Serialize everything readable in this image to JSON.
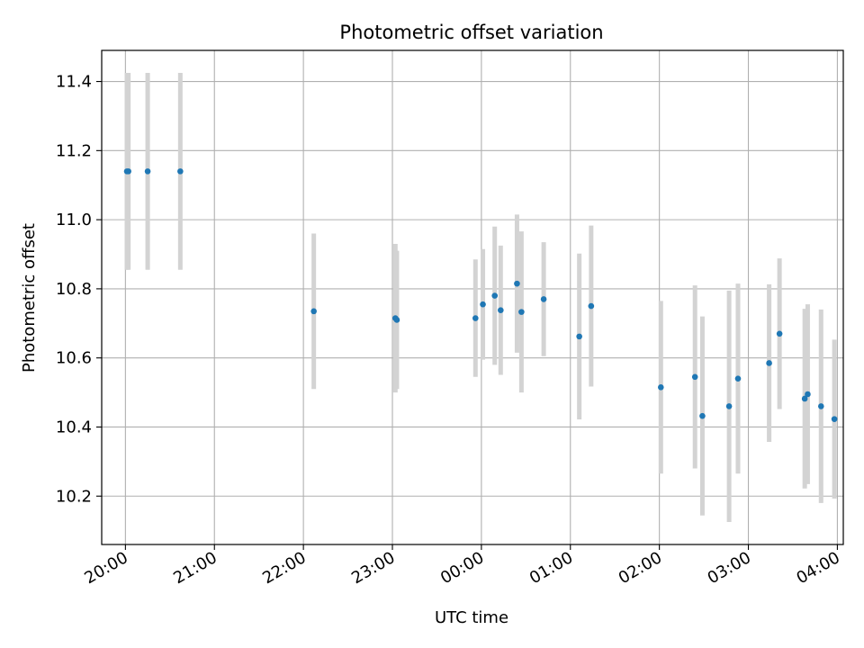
{
  "chart_data": {
    "type": "scatter",
    "title": "Photometric offset variation",
    "xlabel": "UTC time",
    "ylabel": "Photometric offset",
    "x_is_time": true,
    "xlim": [
      "19:44",
      "23:59+4:04"
    ],
    "x_ticks": [
      "20:00",
      "21:00",
      "22:00",
      "23:00",
      "00:00",
      "01:00",
      "02:00",
      "03:00",
      "04:00"
    ],
    "ylim": [
      10.06,
      11.49
    ],
    "y_ticks": [
      10.2,
      10.4,
      10.6,
      10.8,
      11.0,
      11.2,
      11.4
    ],
    "grid": true,
    "colors": {
      "marker": "#1f77b4",
      "errorbar": "#d3d3d3",
      "grid": "#b0b0b0"
    },
    "series": [
      {
        "points": [
          {
            "time": "20:01",
            "y": 11.14,
            "yerr": 0.285
          },
          {
            "time": "20:02",
            "y": 11.14,
            "yerr": 0.285
          },
          {
            "time": "20:15",
            "y": 11.14,
            "yerr": 0.285
          },
          {
            "time": "20:37",
            "y": 11.14,
            "yerr": 0.285
          },
          {
            "time": "22:07",
            "y": 10.735,
            "yerr": 0.225
          },
          {
            "time": "23:02",
            "y": 10.715,
            "yerr": 0.215
          },
          {
            "time": "23:03",
            "y": 10.71,
            "yerr": 0.2
          },
          {
            "time": "23:56",
            "y": 10.715,
            "yerr": 0.17
          },
          {
            "time": "00:01",
            "y": 10.755,
            "yerr": 0.16
          },
          {
            "time": "00:09",
            "y": 10.78,
            "yerr": 0.2
          },
          {
            "time": "00:13",
            "y": 10.738,
            "yerr": 0.187
          },
          {
            "time": "00:24",
            "y": 10.815,
            "yerr": 0.2
          },
          {
            "time": "00:27",
            "y": 10.733,
            "yerr": 0.233
          },
          {
            "time": "00:42",
            "y": 10.77,
            "yerr": 0.165
          },
          {
            "time": "01:06",
            "y": 10.662,
            "yerr": 0.24
          },
          {
            "time": "01:14",
            "y": 10.75,
            "yerr": 0.233
          },
          {
            "time": "02:01",
            "y": 10.515,
            "yerr": 0.25
          },
          {
            "time": "02:24",
            "y": 10.545,
            "yerr": 0.265
          },
          {
            "time": "02:29",
            "y": 10.432,
            "yerr": 0.288
          },
          {
            "time": "02:47",
            "y": 10.46,
            "yerr": 0.335
          },
          {
            "time": "02:53",
            "y": 10.54,
            "yerr": 0.275
          },
          {
            "time": "03:14",
            "y": 10.585,
            "yerr": 0.228
          },
          {
            "time": "03:21",
            "y": 10.67,
            "yerr": 0.218
          },
          {
            "time": "03:38",
            "y": 10.482,
            "yerr": 0.26
          },
          {
            "time": "03:40",
            "y": 10.495,
            "yerr": 0.26
          },
          {
            "time": "03:49",
            "y": 10.46,
            "yerr": 0.28
          },
          {
            "time": "03:58",
            "y": 10.423,
            "yerr": 0.23
          }
        ]
      }
    ]
  }
}
